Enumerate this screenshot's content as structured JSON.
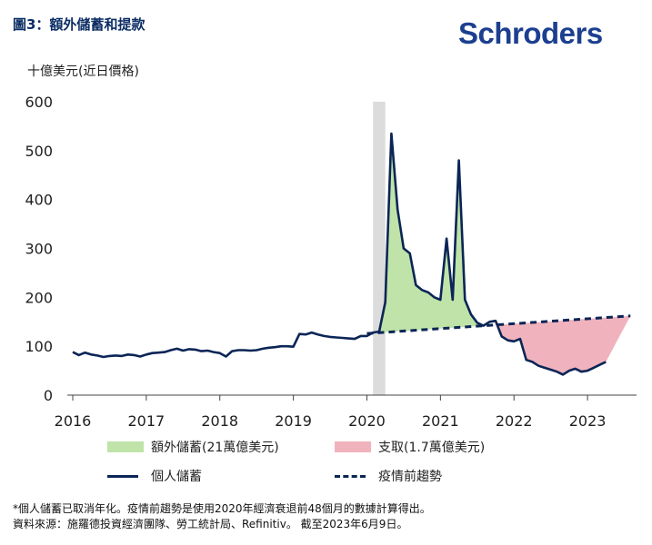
{
  "header": {
    "title": "圖3：額外儲蓄和提款",
    "brand": "Schroders",
    "unit_label": "十億美元(近日價格)"
  },
  "colors": {
    "savings_line": "#0b2556",
    "trend_line": "#0b2556",
    "excess_fill": "#bfe3a8",
    "drawdown_fill": "#f0b3bd",
    "recession_band": "#dcdcdc",
    "title": "#0b2d64",
    "brand": "#1c3f8f"
  },
  "chart_data": {
    "type": "line",
    "xlabel": "",
    "ylabel": "十億美元(近日價格)",
    "ylim": [
      0,
      600
    ],
    "yticks": [
      0,
      100,
      200,
      300,
      400,
      500,
      600
    ],
    "xticks": [
      "2016",
      "2017",
      "2018",
      "2019",
      "2020",
      "2021",
      "2022",
      "2023"
    ],
    "xlim": [
      "2016-01",
      "2023-09"
    ],
    "recession_shading": {
      "start": "2020-02",
      "end": "2020-04"
    },
    "series": [
      {
        "name": "個人儲蓄",
        "style": "solid",
        "x": [
          "2016-01",
          "2016-02",
          "2016-03",
          "2016-04",
          "2016-05",
          "2016-06",
          "2016-07",
          "2016-08",
          "2016-09",
          "2016-10",
          "2016-11",
          "2016-12",
          "2017-01",
          "2017-02",
          "2017-03",
          "2017-04",
          "2017-05",
          "2017-06",
          "2017-07",
          "2017-08",
          "2017-09",
          "2017-10",
          "2017-11",
          "2017-12",
          "2018-01",
          "2018-02",
          "2018-03",
          "2018-04",
          "2018-05",
          "2018-06",
          "2018-07",
          "2018-08",
          "2018-09",
          "2018-10",
          "2018-11",
          "2018-12",
          "2019-01",
          "2019-02",
          "2019-03",
          "2019-04",
          "2019-05",
          "2019-06",
          "2019-07",
          "2019-08",
          "2019-09",
          "2019-10",
          "2019-11",
          "2019-12",
          "2020-01",
          "2020-02",
          "2020-03",
          "2020-04",
          "2020-05",
          "2020-06",
          "2020-07",
          "2020-08",
          "2020-09",
          "2020-10",
          "2020-11",
          "2020-12",
          "2021-01",
          "2021-02",
          "2021-03",
          "2021-04",
          "2021-05",
          "2021-06",
          "2021-07",
          "2021-08",
          "2021-09",
          "2021-10",
          "2021-11",
          "2021-12",
          "2022-01",
          "2022-02",
          "2022-03",
          "2022-04",
          "2022-05",
          "2022-06",
          "2022-07",
          "2022-08",
          "2022-09",
          "2022-10",
          "2022-11",
          "2022-12",
          "2023-01",
          "2023-02",
          "2023-03",
          "2023-04"
        ],
        "values": [
          88,
          82,
          87,
          83,
          81,
          78,
          80,
          81,
          80,
          83,
          82,
          79,
          83,
          86,
          87,
          88,
          92,
          95,
          91,
          94,
          93,
          90,
          91,
          88,
          86,
          79,
          90,
          92,
          92,
          91,
          92,
          95,
          97,
          98,
          100,
          100,
          99,
          125,
          124,
          128,
          124,
          121,
          119,
          118,
          117,
          116,
          115,
          121,
          121,
          128,
          130,
          190,
          535,
          380,
          300,
          290,
          225,
          215,
          210,
          200,
          195,
          320,
          195,
          480,
          195,
          165,
          148,
          142,
          150,
          152,
          120,
          112,
          110,
          115,
          72,
          68,
          60,
          56,
          52,
          48,
          42,
          50,
          54,
          48,
          50,
          56,
          62,
          68
        ]
      },
      {
        "name": "疫情前趨勢",
        "style": "dashed",
        "x": [
          "2020-01",
          "2023-08"
        ],
        "values": [
          126,
          162
        ]
      }
    ],
    "areas": [
      {
        "name": "額外儲蓄(21萬億美元)",
        "kind": "above_trend",
        "from": "2020-03",
        "to": "2021-09"
      },
      {
        "name": "支取(1.7萬億美元)",
        "kind": "below_trend",
        "from": "2021-10",
        "to": "2023-08"
      }
    ],
    "legend": {
      "placement": "bottom",
      "items": [
        {
          "label": "額外儲蓄(21萬億美元)",
          "kind": "area",
          "color": "#bfe3a8"
        },
        {
          "label": "支取(1.7萬億美元)",
          "kind": "area",
          "color": "#f0b3bd"
        },
        {
          "label": "個人儲蓄",
          "kind": "line",
          "color": "#0b2556"
        },
        {
          "label": "疫情前趨勢",
          "kind": "dashed",
          "color": "#0b2556"
        }
      ]
    }
  },
  "footnote": {
    "line1": "*個人儲蓄已取消年化。疫情前趨勢是使用2020年經濟衰退前48個月的數據計算得出。",
    "line2": "資料來源：施羅德投資經濟團隊、勞工統計局、Refinitiv。 截至2023年6月9日。"
  }
}
